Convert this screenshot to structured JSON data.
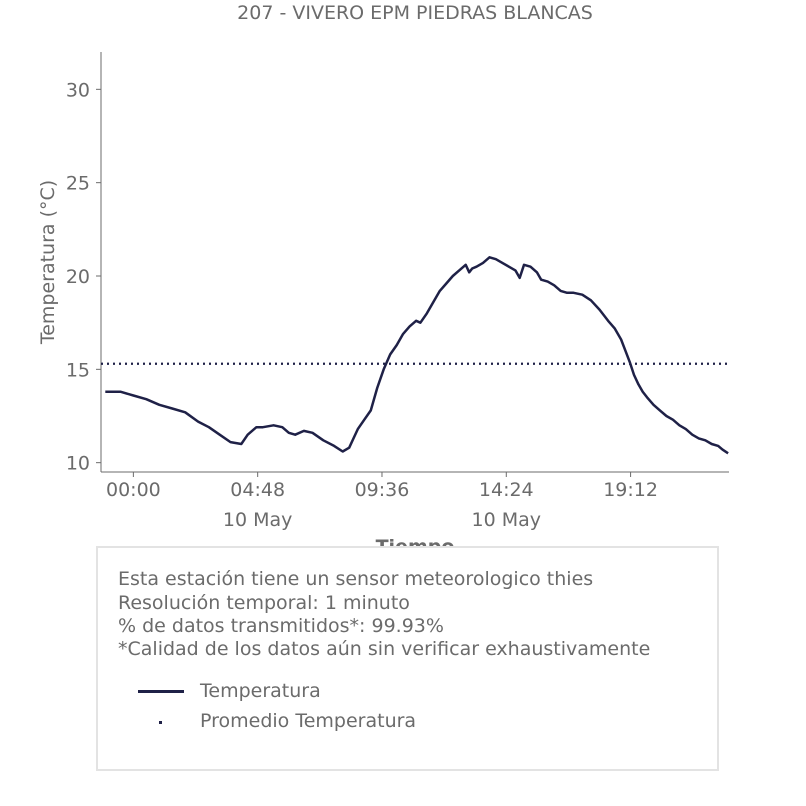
{
  "chart_data": {
    "type": "line",
    "title": "207 - VIVERO EPM PIEDRAS BLANCAS",
    "xlabel": "Tiempo",
    "ylabel": "Temperatura (°C)",
    "ylim": [
      9.5,
      32
    ],
    "xlim_minutes": [
      -75,
      1380
    ],
    "yticks": [
      10,
      15,
      20,
      25,
      30
    ],
    "xticks": [
      {
        "minute": 0,
        "time": "00:00",
        "date": ""
      },
      {
        "minute": 288,
        "time": "04:48",
        "date": "10 May"
      },
      {
        "minute": 576,
        "time": "09:36",
        "date": ""
      },
      {
        "minute": 864,
        "time": "14:24",
        "date": "10 May"
      },
      {
        "minute": 1152,
        "time": "19:12",
        "date": ""
      }
    ],
    "grid": false,
    "series": [
      {
        "name": "Temperatura",
        "style": "solid",
        "color": "#1f2147",
        "points": [
          [
            -65,
            13.8
          ],
          [
            -30,
            13.8
          ],
          [
            0,
            13.6
          ],
          [
            30,
            13.4
          ],
          [
            60,
            13.1
          ],
          [
            90,
            12.9
          ],
          [
            120,
            12.7
          ],
          [
            150,
            12.2
          ],
          [
            175,
            11.9
          ],
          [
            200,
            11.5
          ],
          [
            225,
            11.1
          ],
          [
            250,
            11.0
          ],
          [
            265,
            11.5
          ],
          [
            285,
            11.9
          ],
          [
            300,
            11.9
          ],
          [
            325,
            12.0
          ],
          [
            345,
            11.9
          ],
          [
            360,
            11.6
          ],
          [
            375,
            11.5
          ],
          [
            395,
            11.7
          ],
          [
            415,
            11.6
          ],
          [
            440,
            11.2
          ],
          [
            465,
            10.9
          ],
          [
            485,
            10.6
          ],
          [
            500,
            10.8
          ],
          [
            510,
            11.3
          ],
          [
            520,
            11.8
          ],
          [
            535,
            12.3
          ],
          [
            550,
            12.8
          ],
          [
            565,
            14.0
          ],
          [
            580,
            15.0
          ],
          [
            595,
            15.8
          ],
          [
            610,
            16.3
          ],
          [
            625,
            16.9
          ],
          [
            640,
            17.3
          ],
          [
            655,
            17.6
          ],
          [
            665,
            17.5
          ],
          [
            680,
            18.0
          ],
          [
            695,
            18.6
          ],
          [
            710,
            19.2
          ],
          [
            725,
            19.6
          ],
          [
            740,
            20.0
          ],
          [
            755,
            20.3
          ],
          [
            770,
            20.6
          ],
          [
            778,
            20.2
          ],
          [
            785,
            20.4
          ],
          [
            795,
            20.5
          ],
          [
            810,
            20.7
          ],
          [
            825,
            21.0
          ],
          [
            840,
            20.9
          ],
          [
            855,
            20.7
          ],
          [
            870,
            20.5
          ],
          [
            885,
            20.3
          ],
          [
            895,
            19.9
          ],
          [
            905,
            20.6
          ],
          [
            920,
            20.5
          ],
          [
            935,
            20.2
          ],
          [
            945,
            19.8
          ],
          [
            960,
            19.7
          ],
          [
            975,
            19.5
          ],
          [
            990,
            19.2
          ],
          [
            1005,
            19.1
          ],
          [
            1020,
            19.1
          ],
          [
            1040,
            19.0
          ],
          [
            1060,
            18.7
          ],
          [
            1080,
            18.2
          ],
          [
            1100,
            17.6
          ],
          [
            1115,
            17.2
          ],
          [
            1130,
            16.6
          ],
          [
            1140,
            16.0
          ],
          [
            1150,
            15.4
          ],
          [
            1160,
            14.7
          ],
          [
            1170,
            14.2
          ],
          [
            1180,
            13.8
          ],
          [
            1190,
            13.5
          ],
          [
            1205,
            13.1
          ],
          [
            1220,
            12.8
          ],
          [
            1235,
            12.5
          ],
          [
            1250,
            12.3
          ],
          [
            1265,
            12.0
          ],
          [
            1280,
            11.8
          ],
          [
            1295,
            11.5
          ],
          [
            1310,
            11.3
          ],
          [
            1325,
            11.2
          ],
          [
            1340,
            11.0
          ],
          [
            1355,
            10.9
          ],
          [
            1365,
            10.7
          ],
          [
            1378,
            10.5
          ]
        ]
      },
      {
        "name": "Promedio Temperatura",
        "style": "dotted",
        "color": "#1f2147",
        "value": 15.3
      }
    ]
  },
  "info": {
    "lines": [
      "Esta estación tiene un sensor meteorologico thies",
      "Resolución temporal: 1 minuto",
      "% de datos transmitidos*: 99.93%",
      "*Calidad de los datos aún sin verificar exhaustivamente"
    ],
    "legend": [
      {
        "label": "Temperatura",
        "style": "solid"
      },
      {
        "label": "Promedio Temperatura",
        "style": "dotted"
      }
    ]
  }
}
